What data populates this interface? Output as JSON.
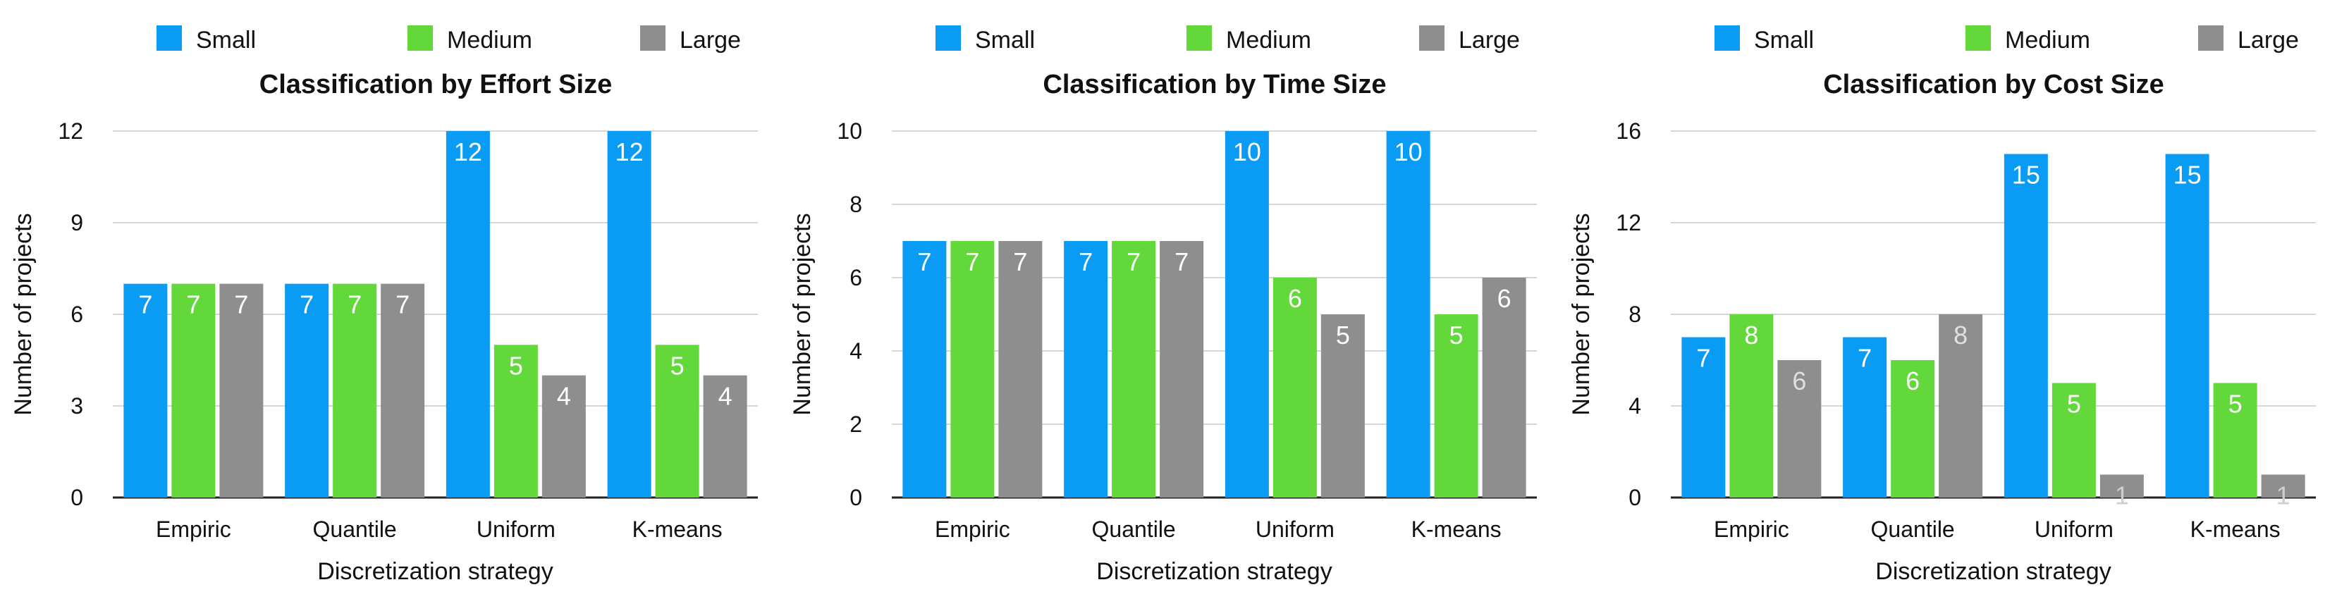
{
  "colors": {
    "Small": "#0a9cf5",
    "Medium": "#62d83b",
    "Large": "#8e8e8e"
  },
  "chart_data": [
    {
      "type": "bar",
      "title": "Classification by Effort Size",
      "xlabel": "Discretization strategy",
      "ylabel": "Number of projects",
      "categories": [
        "Empiric",
        "Quantile",
        "Uniform",
        "K-means"
      ],
      "ylim": [
        0,
        12
      ],
      "yticks": [
        0,
        3,
        6,
        9,
        12
      ],
      "legend": [
        "Small",
        "Medium",
        "Large"
      ],
      "grid": true,
      "series": [
        {
          "name": "Small",
          "values": [
            7,
            7,
            12,
            12
          ]
        },
        {
          "name": "Medium",
          "values": [
            7,
            7,
            5,
            5
          ]
        },
        {
          "name": "Large",
          "values": [
            7,
            7,
            4,
            4
          ]
        }
      ]
    },
    {
      "type": "bar",
      "title": "Classification by Time Size",
      "xlabel": "Discretization strategy",
      "ylabel": "Number of projects",
      "categories": [
        "Empiric",
        "Quantile",
        "Uniform",
        "K-means"
      ],
      "ylim": [
        0,
        10
      ],
      "yticks": [
        0,
        2,
        4,
        6,
        8,
        10
      ],
      "legend": [
        "Small",
        "Medium",
        "Large"
      ],
      "grid": true,
      "series": [
        {
          "name": "Small",
          "values": [
            7,
            7,
            10,
            10
          ]
        },
        {
          "name": "Medium",
          "values": [
            7,
            7,
            6,
            5
          ]
        },
        {
          "name": "Large",
          "values": [
            7,
            7,
            5,
            6
          ]
        }
      ]
    },
    {
      "type": "bar",
      "title": "Classification by Cost Size",
      "xlabel": "Discretization strategy",
      "ylabel": "Number of projects",
      "categories": [
        "Empiric",
        "Quantile",
        "Uniform",
        "K-means"
      ],
      "ylim": [
        0,
        16
      ],
      "yticks": [
        0,
        4,
        8,
        12,
        16
      ],
      "legend": [
        "Small",
        "Medium",
        "Large"
      ],
      "grid": true,
      "series": [
        {
          "name": "Small",
          "values": [
            7,
            7,
            15,
            15
          ]
        },
        {
          "name": "Medium",
          "values": [
            8,
            6,
            5,
            5
          ]
        },
        {
          "name": "Large",
          "values": [
            6,
            8,
            1,
            1
          ]
        }
      ]
    }
  ]
}
